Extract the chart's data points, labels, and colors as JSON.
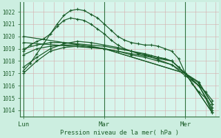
{
  "xlabel": "Pression niveau de la mer( hPa )",
  "background_color": "#cceee0",
  "plot_bg_color": "#d8f5ec",
  "grid_color_h": "#c8a0a0",
  "grid_color_v": "#c8a0a0",
  "vline_color": "#2d6e3a",
  "line_color": "#1a5c28",
  "xtick_labels": [
    "Lun",
    "Mar",
    "Mer"
  ],
  "xtick_positions": [
    0,
    24,
    48
  ],
  "ytick_labels": [
    "1014",
    "1015",
    "1016",
    "1017",
    "1018",
    "1019",
    "1020",
    "1021",
    "1022"
  ],
  "ytick_values": [
    1014,
    1015,
    1016,
    1017,
    1018,
    1019,
    1020,
    1021,
    1022
  ],
  "ylim": [
    1013.5,
    1022.8
  ],
  "xlim": [
    -1,
    58
  ],
  "series": [
    {
      "x": [
        0,
        2,
        4,
        6,
        8,
        10,
        12,
        14,
        16,
        18,
        20,
        22,
        24,
        26,
        28,
        30,
        32,
        34,
        36,
        38,
        40,
        42,
        44,
        46,
        48,
        50,
        52,
        54,
        56
      ],
      "y": [
        1017.2,
        1017.8,
        1018.6,
        1019.4,
        1020.2,
        1021.0,
        1021.7,
        1022.1,
        1022.2,
        1022.1,
        1021.8,
        1021.5,
        1021.0,
        1020.5,
        1020.0,
        1019.7,
        1019.5,
        1019.4,
        1019.3,
        1019.3,
        1019.2,
        1019.0,
        1018.8,
        1018.2,
        1017.0,
        1016.2,
        1015.5,
        1015.0,
        1013.8
      ]
    },
    {
      "x": [
        0,
        2,
        4,
        6,
        8,
        10,
        12,
        14,
        16,
        18,
        20,
        22,
        24,
        26,
        28,
        30,
        32,
        34,
        36,
        38,
        40,
        42,
        44,
        46,
        48,
        50,
        52,
        54,
        56
      ],
      "y": [
        1018.8,
        1019.3,
        1019.6,
        1019.8,
        1020.2,
        1020.8,
        1021.3,
        1021.5,
        1021.4,
        1021.3,
        1021.0,
        1020.6,
        1020.2,
        1019.7,
        1019.3,
        1019.0,
        1018.8,
        1018.6,
        1018.5,
        1018.4,
        1018.3,
        1018.2,
        1018.0,
        1017.5,
        1017.0,
        1016.5,
        1016.0,
        1015.5,
        1014.8
      ]
    },
    {
      "x": [
        0,
        4,
        8,
        12,
        16,
        20,
        24,
        28,
        32,
        36,
        40,
        44,
        48,
        52,
        56
      ],
      "y": [
        1018.5,
        1019.0,
        1019.2,
        1019.3,
        1019.3,
        1019.2,
        1019.0,
        1018.8,
        1018.6,
        1018.4,
        1018.2,
        1018.0,
        1017.0,
        1016.3,
        1014.5
      ]
    },
    {
      "x": [
        0,
        4,
        8,
        12,
        16,
        20,
        24,
        28,
        32,
        36,
        40,
        44,
        48,
        52,
        56
      ],
      "y": [
        1017.0,
        1018.0,
        1018.8,
        1019.1,
        1019.2,
        1019.1,
        1019.0,
        1018.8,
        1018.5,
        1018.3,
        1018.0,
        1017.7,
        1017.0,
        1016.0,
        1014.2
      ]
    },
    {
      "x": [
        0,
        4,
        8,
        12,
        16,
        20,
        24,
        28,
        32,
        36,
        40,
        44,
        48,
        52,
        56
      ],
      "y": [
        1019.0,
        1019.3,
        1019.5,
        1019.5,
        1019.4,
        1019.3,
        1019.2,
        1019.0,
        1018.8,
        1018.6,
        1018.3,
        1018.0,
        1017.0,
        1016.2,
        1014.5
      ]
    },
    {
      "x": [
        0,
        4,
        8,
        12,
        16,
        20,
        24,
        28,
        32,
        36,
        40,
        44,
        48,
        52,
        56
      ],
      "y": [
        1017.5,
        1018.3,
        1019.0,
        1019.4,
        1019.6,
        1019.5,
        1019.3,
        1019.1,
        1018.8,
        1018.5,
        1018.1,
        1017.7,
        1016.8,
        1016.0,
        1014.0
      ]
    },
    {
      "x": [
        0,
        24,
        48,
        56
      ],
      "y": [
        1019.5,
        1019.0,
        1017.0,
        1013.8
      ]
    },
    {
      "x": [
        0,
        24,
        48,
        56
      ],
      "y": [
        1020.0,
        1019.0,
        1017.0,
        1013.8
      ]
    }
  ]
}
